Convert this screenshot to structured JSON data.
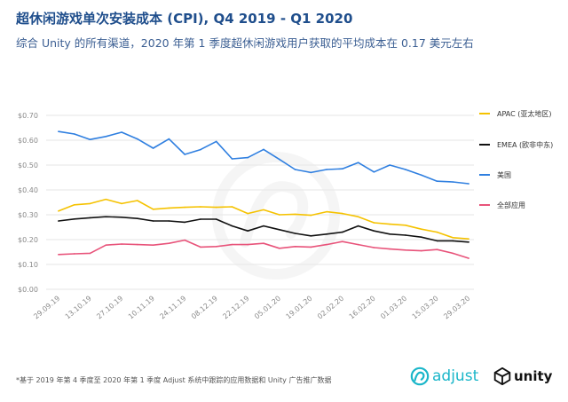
{
  "header": {
    "title": "超休闲游戏单次安装成本 (CPI), Q4 2019 - Q1 2020",
    "subtitle": "综合 Unity 的所有渠道，2020 年第 1 季度超休闲游戏用户获取的平均成本在 0.17 美元左右"
  },
  "footer": {
    "note": "*基于 2019 年第 4 季度至 2020 年第 1 季度 Adjust 系统中跟踪的应用数据和 Unity 广告推广数据",
    "adjust_logo": "adjust",
    "unity_logo": "unity"
  },
  "colors": {
    "apac": "#f5c200",
    "emea": "#111111",
    "us": "#2f7fe0",
    "all": "#e8537a",
    "grid": "#e6e6e6",
    "tick": "#8a8a8a"
  },
  "chart_data": {
    "type": "line",
    "title": "超休闲游戏单次安装成本 (CPI), Q4 2019 - Q1 2020",
    "xlabel": "",
    "ylabel": "",
    "ylim": [
      0,
      0.7
    ],
    "yticks": [
      0,
      0.1,
      0.2,
      0.3,
      0.4,
      0.5,
      0.6,
      0.7
    ],
    "ytick_labels": [
      "$0.00",
      "$0.10",
      "$0.20",
      "$0.30",
      "$0.40",
      "$0.50",
      "$0.60",
      "$0.70"
    ],
    "xtick_labels": [
      "29.09.19",
      "13.10.19",
      "27.10.19",
      "10.11.19",
      "24.11.19",
      "08.12.19",
      "22.12.19",
      "05.01.20",
      "19.01.20",
      "02.02.20",
      "16.02.20",
      "01.03.20",
      "15.03.20",
      "29.03.20"
    ],
    "n_points": 27,
    "legend_position": "right",
    "series": [
      {
        "name": "APAC (亚太地区)",
        "color_key": "apac",
        "values": [
          0.315,
          0.34,
          0.345,
          0.362,
          0.345,
          0.357,
          0.322,
          0.327,
          0.33,
          0.332,
          0.33,
          0.332,
          0.305,
          0.32,
          0.3,
          0.302,
          0.298,
          0.312,
          0.305,
          0.292,
          0.268,
          0.262,
          0.258,
          0.242,
          0.23,
          0.208,
          0.203
        ]
      },
      {
        "name": "EMEA (欧非中东)",
        "color_key": "emea",
        "values": [
          0.275,
          0.283,
          0.288,
          0.292,
          0.29,
          0.285,
          0.275,
          0.275,
          0.27,
          0.282,
          0.282,
          0.255,
          0.235,
          0.255,
          0.24,
          0.225,
          0.215,
          0.222,
          0.23,
          0.255,
          0.235,
          0.222,
          0.218,
          0.21,
          0.195,
          0.195,
          0.19
        ]
      },
      {
        "name": "美国",
        "color_key": "us",
        "values": [
          0.635,
          0.625,
          0.603,
          0.615,
          0.632,
          0.605,
          0.568,
          0.605,
          0.543,
          0.562,
          0.595,
          0.525,
          0.53,
          0.563,
          0.523,
          0.482,
          0.47,
          0.482,
          0.485,
          0.51,
          0.472,
          0.5,
          0.482,
          0.46,
          0.435,
          0.432,
          0.425
        ]
      },
      {
        "name": "全部应用",
        "color_key": "all",
        "values": [
          0.14,
          0.143,
          0.145,
          0.178,
          0.182,
          0.18,
          0.178,
          0.185,
          0.198,
          0.17,
          0.172,
          0.18,
          0.18,
          0.185,
          0.165,
          0.172,
          0.17,
          0.18,
          0.192,
          0.18,
          0.168,
          0.162,
          0.158,
          0.155,
          0.16,
          0.145,
          0.125
        ]
      }
    ]
  }
}
